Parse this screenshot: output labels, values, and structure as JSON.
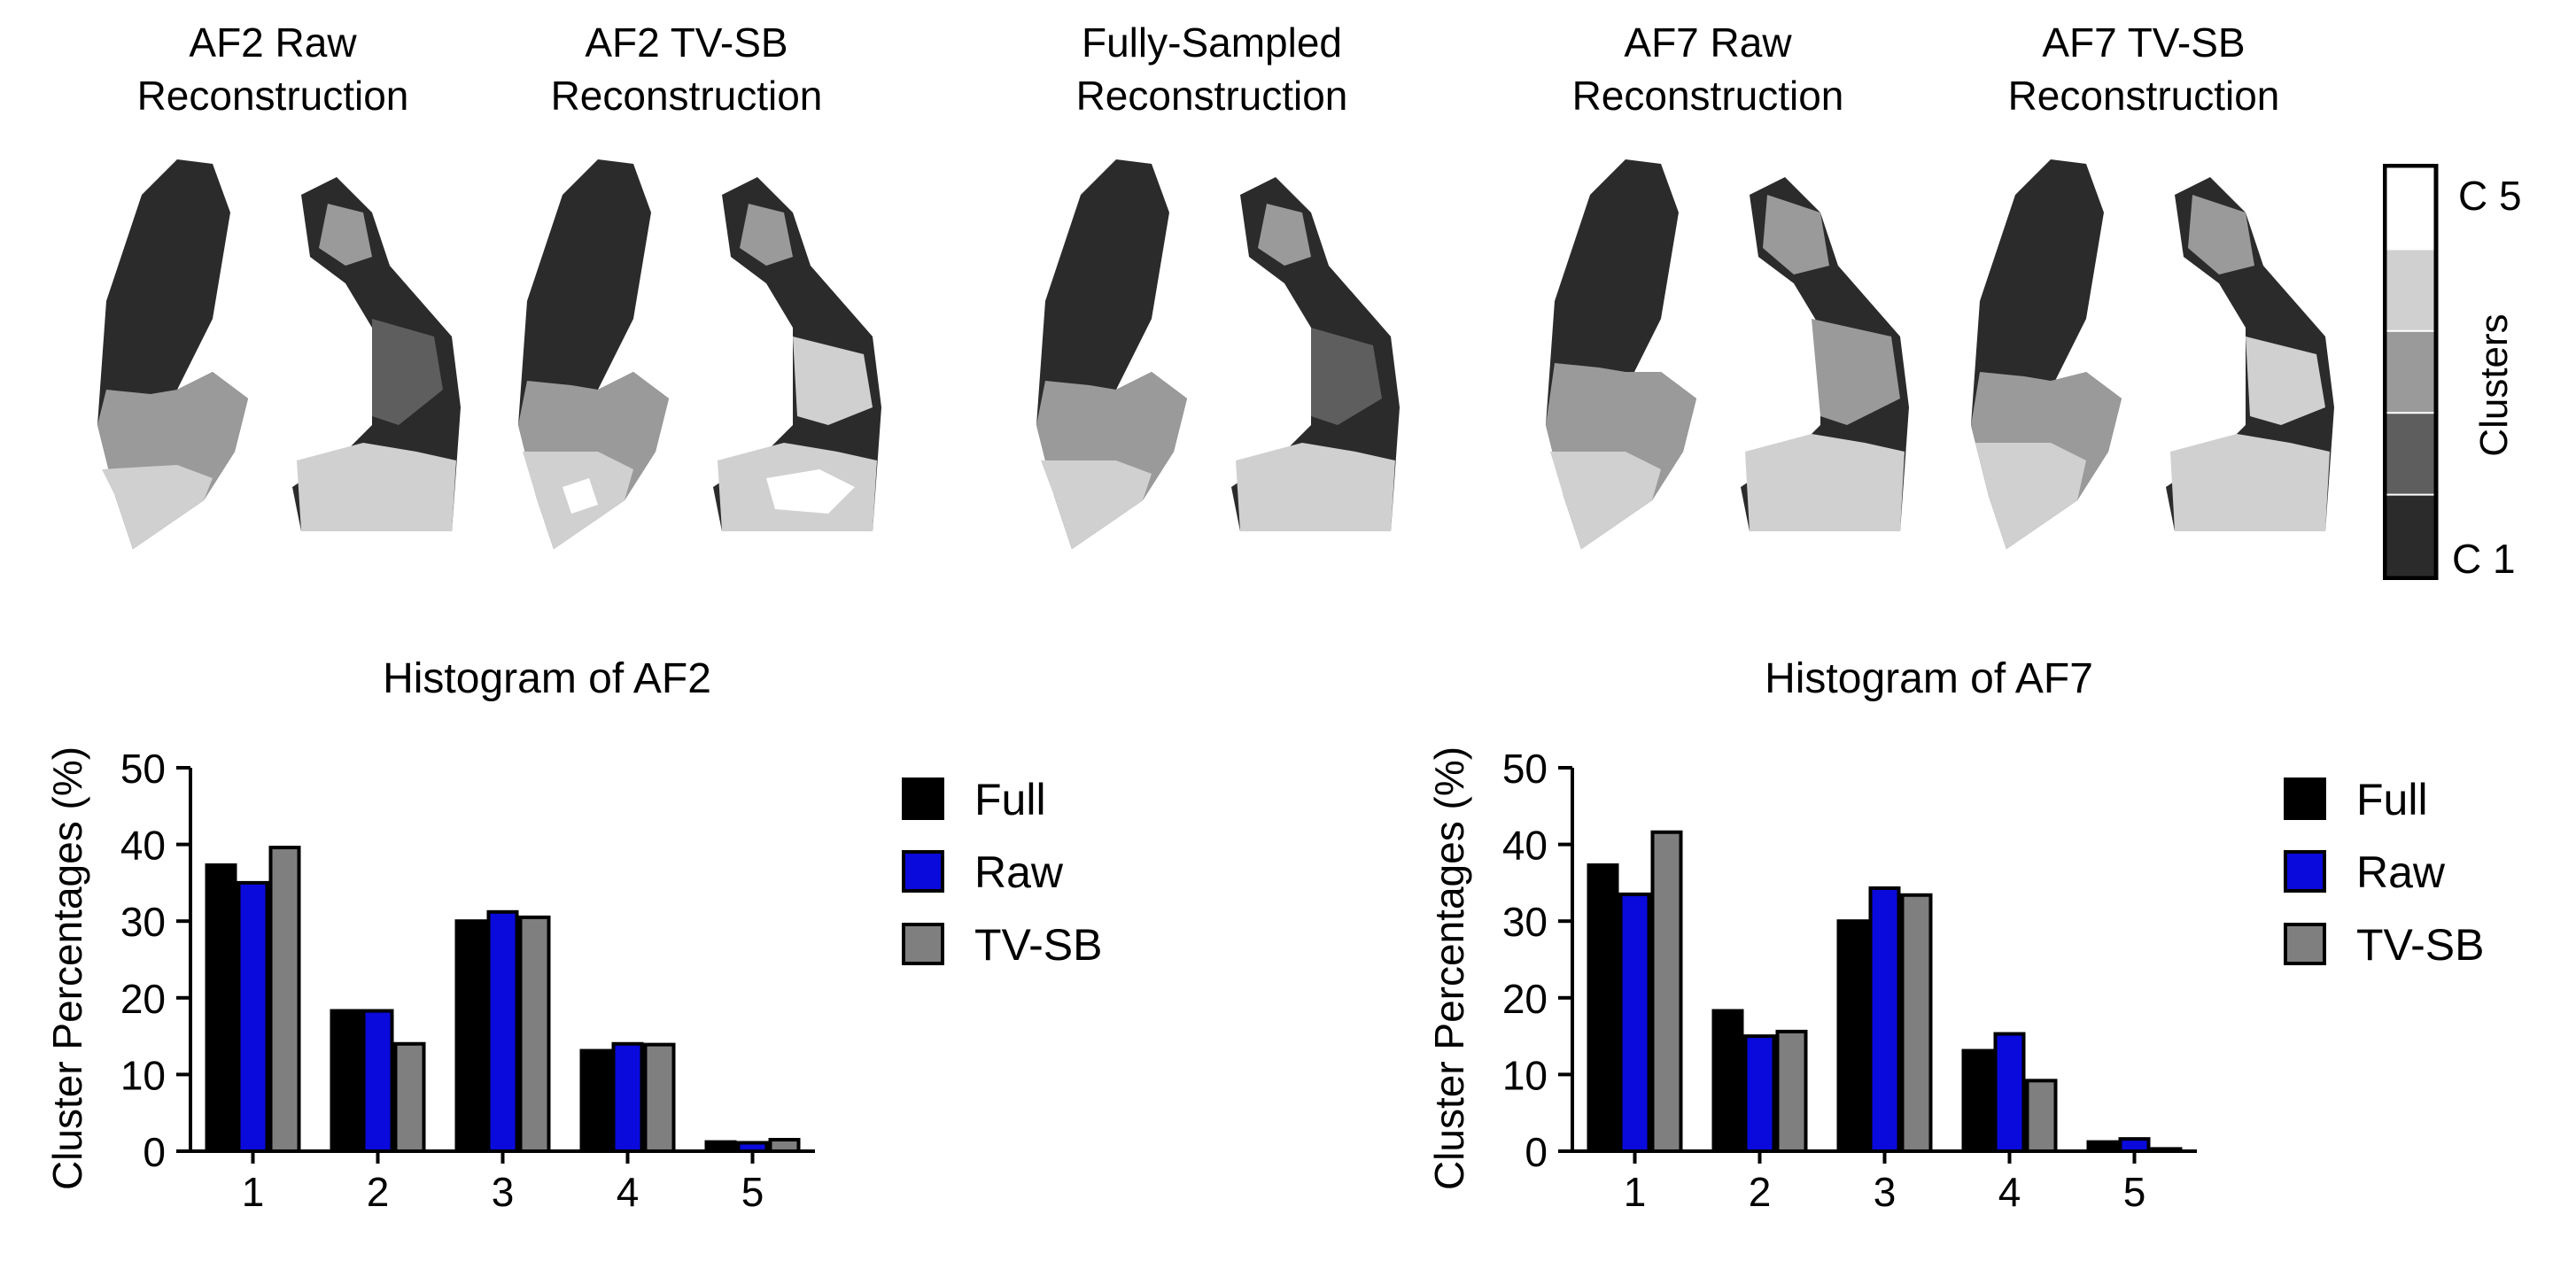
{
  "panels": [
    {
      "line1": "AF2 Raw",
      "line2": "Reconstruction"
    },
    {
      "line1": "AF2 TV-SB",
      "line2": "Reconstruction"
    },
    {
      "line1": "Fully-Sampled",
      "line2": "Reconstruction"
    },
    {
      "line1": "AF7 Raw",
      "line2": "Reconstruction"
    },
    {
      "line1": "AF7 TV-SB",
      "line2": "Reconstruction"
    }
  ],
  "colorbar": {
    "top_label": "C 5",
    "bottom_label": "C 1",
    "title": "Clusters",
    "colors": [
      "#2b2b2b",
      "#5e5e5e",
      "#9a9a9a",
      "#d0d0d0",
      "#ffffff"
    ]
  },
  "chart_data": [
    {
      "type": "bar",
      "title": "Histogram of AF2",
      "xlabel": "",
      "ylabel": "Cluster Percentages (%)",
      "categories": [
        "1",
        "2",
        "3",
        "4",
        "5"
      ],
      "ylim": [
        0,
        50
      ],
      "yticks": [
        "0",
        "10",
        "20",
        "30",
        "40",
        "50"
      ],
      "series": [
        {
          "name": "Full",
          "color": "#000000",
          "values": [
            37.3,
            18.3,
            30.0,
            13.1,
            1.2
          ]
        },
        {
          "name": "Raw",
          "color": "#0a0adc",
          "values": [
            35.0,
            18.3,
            31.2,
            14.0,
            1.1
          ]
        },
        {
          "name": "TV-SB",
          "color": "#7f7f7f",
          "values": [
            39.6,
            14.0,
            30.5,
            13.9,
            1.5
          ]
        }
      ],
      "legend_position": "right"
    },
    {
      "type": "bar",
      "title": "Histogram of AF7",
      "xlabel": "",
      "ylabel": "Cluster Percentages (%)",
      "categories": [
        "1",
        "2",
        "3",
        "4",
        "5"
      ],
      "ylim": [
        0,
        50
      ],
      "yticks": [
        "0",
        "10",
        "20",
        "30",
        "40",
        "50"
      ],
      "series": [
        {
          "name": "Full",
          "color": "#000000",
          "values": [
            37.3,
            18.3,
            30.0,
            13.1,
            1.2
          ]
        },
        {
          "name": "Raw",
          "color": "#0a0adc",
          "values": [
            33.5,
            15.0,
            34.3,
            15.3,
            1.6
          ]
        },
        {
          "name": "TV-SB",
          "color": "#7f7f7f",
          "values": [
            41.6,
            15.6,
            33.4,
            9.2,
            0.3
          ]
        }
      ],
      "legend_position": "right"
    }
  ]
}
